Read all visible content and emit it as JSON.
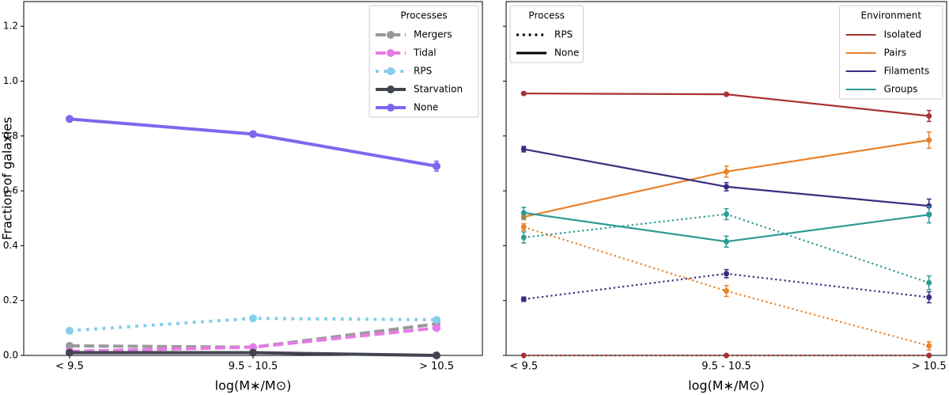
{
  "chart_data": [
    {
      "type": "line",
      "xlabel": "log(M∗/M⊙)",
      "ylabel": "Fraction of galaxies",
      "categories": [
        "< 9.5",
        "9.5 - 10.5",
        "> 10.5"
      ],
      "ylim": [
        0,
        1.29
      ],
      "yticks": [
        {
          "value": 0,
          "label": "0.0"
        },
        0.2,
        0.4,
        0.6,
        0.8,
        {
          "value": 1,
          "label": "1.0"
        },
        1.2
      ],
      "legend": {
        "title": "Processes",
        "loc": "upper right"
      },
      "series": [
        {
          "name": "Mergers",
          "color": "#999999",
          "dash": "dashed",
          "values": [
            0.035,
            0.03,
            0.115
          ]
        },
        {
          "name": "Tidal",
          "color": "#e67ae6",
          "dash": "dashed",
          "values": [
            0.015,
            0.03,
            0.1
          ],
          "errors": [
            0.003,
            0.005,
            0.01
          ]
        },
        {
          "name": "RPS",
          "color": "#87ceeb",
          "dash": "dotted",
          "values": [
            0.09,
            0.135,
            0.13
          ],
          "errors": [
            0.005,
            0.008,
            0.01
          ]
        },
        {
          "name": "Starvation",
          "color": "#40454f",
          "dash": "solid",
          "values": [
            0.01,
            0.01,
            0.0
          ]
        },
        {
          "name": "None",
          "color": "#7b68ee",
          "dash": "solid",
          "values": [
            0.862,
            0.807,
            0.69
          ],
          "errors": [
            0.005,
            0.01,
            0.018
          ]
        }
      ]
    },
    {
      "type": "line",
      "xlabel": "log(M∗/M⊙)",
      "categories": [
        "< 9.5",
        "9.5 - 10.5",
        "> 10.5"
      ],
      "ylim": [
        0,
        1.29
      ],
      "yticks": [
        0,
        0.2,
        0.4,
        0.6,
        0.8,
        1,
        1.2
      ],
      "show_ytick_labels": false,
      "legends": [
        {
          "title": "Process",
          "loc": "upper left",
          "entries": [
            {
              "label": "RPS",
              "dash": "dotted"
            },
            {
              "label": "None",
              "dash": "solid"
            }
          ]
        },
        {
          "title": "Environment",
          "loc": "upper right",
          "entries": [
            {
              "label": "Isolated",
              "color": "#a83232"
            },
            {
              "label": "Pairs",
              "color": "#e8832a"
            },
            {
              "label": "Filaments",
              "color": "#3a2d80"
            },
            {
              "label": "Groups",
              "color": "#2e9a96"
            }
          ]
        }
      ],
      "series": [
        {
          "environment": "Isolated",
          "process": "None",
          "values": [
            0.955,
            0.952,
            0.873
          ],
          "errors": [
            0.005,
            0.005,
            0.02
          ]
        },
        {
          "environment": "Isolated",
          "process": "RPS",
          "values": [
            0,
            0,
            0
          ],
          "errors": [
            0,
            0,
            0
          ]
        },
        {
          "environment": "Pairs",
          "process": "None",
          "values": [
            0.505,
            0.67,
            0.785
          ],
          "errors": [
            0.01,
            0.02,
            0.03
          ]
        },
        {
          "environment": "Pairs",
          "process": "RPS",
          "values": [
            0.468,
            0.235,
            0.035
          ],
          "errors": [
            0.012,
            0.02,
            0.015
          ]
        },
        {
          "environment": "Filaments",
          "process": "None",
          "values": [
            0.752,
            0.615,
            0.545
          ],
          "errors": [
            0.01,
            0.015,
            0.025
          ]
        },
        {
          "environment": "Filaments",
          "process": "RPS",
          "values": [
            0.205,
            0.298,
            0.212
          ],
          "errors": [
            0.008,
            0.015,
            0.02
          ]
        },
        {
          "environment": "Groups",
          "process": "None",
          "values": [
            0.52,
            0.415,
            0.513
          ],
          "errors": [
            0.02,
            0.02,
            0.03
          ]
        },
        {
          "environment": "Groups",
          "process": "RPS",
          "values": [
            0.43,
            0.515,
            0.265
          ],
          "errors": [
            0.02,
            0.02,
            0.025
          ]
        }
      ]
    }
  ]
}
